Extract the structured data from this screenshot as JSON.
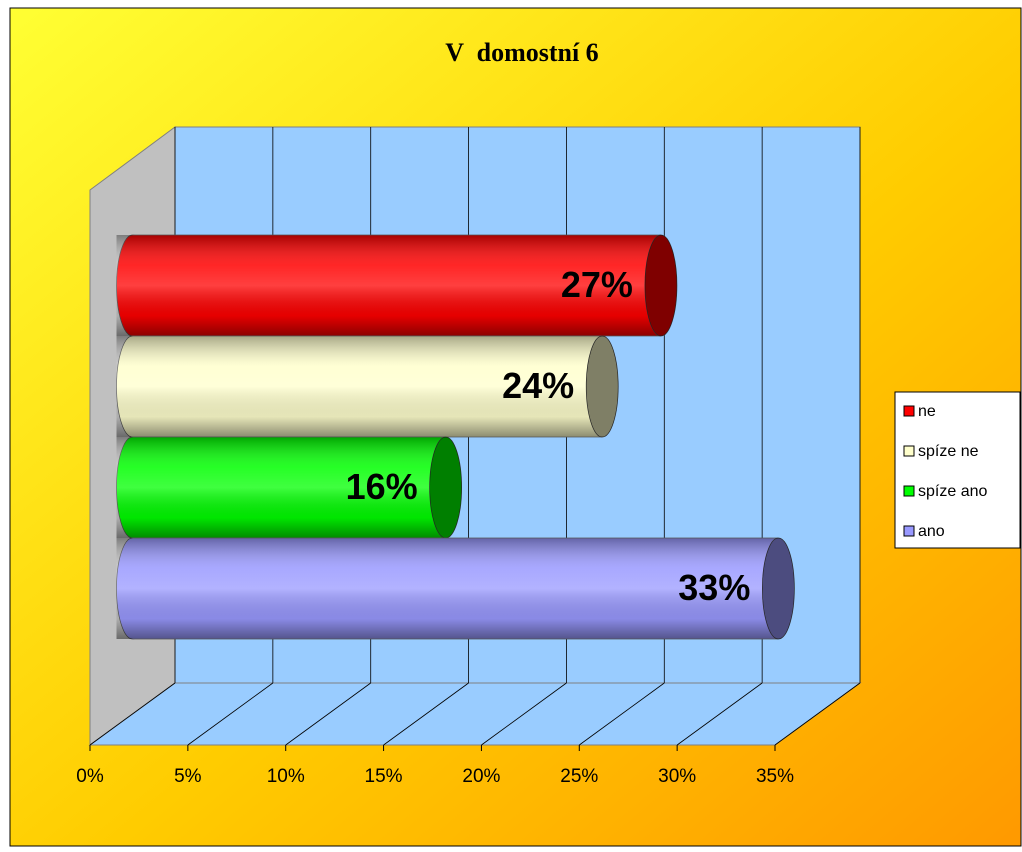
{
  "chart_data": {
    "type": "bar",
    "orientation": "horizontal",
    "title": "V  domostní 6",
    "series": [
      {
        "name": "ne",
        "color": "#ff0000",
        "values": [
          27
        ],
        "value_labels": [
          "27%"
        ]
      },
      {
        "name": "spíze ne",
        "color": "#ffffcc",
        "values": [
          24
        ],
        "value_labels": [
          "24%"
        ]
      },
      {
        "name": "spíze ano",
        "color": "#00ff00",
        "values": [
          16
        ],
        "value_labels": [
          "16%"
        ]
      },
      {
        "name": "ano",
        "color": "#9999ff",
        "values": [
          33
        ],
        "value_labels": [
          "33%"
        ]
      }
    ],
    "xlim": [
      0,
      35
    ],
    "xticks": [
      {
        "value": 0,
        "label": "0%"
      },
      {
        "value": 5,
        "label": "5%"
      },
      {
        "value": 10,
        "label": "10%"
      },
      {
        "value": 15,
        "label": "15%"
      },
      {
        "value": 20,
        "label": "20%"
      },
      {
        "value": 25,
        "label": "25%"
      },
      {
        "value": 30,
        "label": "30%"
      },
      {
        "value": 35,
        "label": "35%"
      }
    ],
    "grid": true,
    "legend": "right"
  }
}
